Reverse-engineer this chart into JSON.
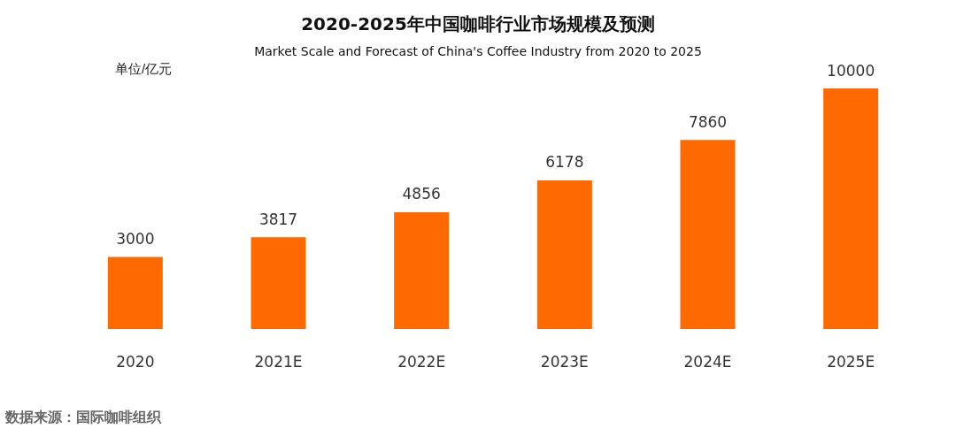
{
  "chart_data": {
    "type": "bar",
    "title": "2020-2025年中国咖啡行业市场规模及预测",
    "subtitle": "Market Scale and Forecast of China's Coffee Industry from 2020 to 2025",
    "ylabel": "单位/亿元",
    "categories": [
      "2020",
      "2021E",
      "2022E",
      "2023E",
      "2024E",
      "2025E"
    ],
    "values": [
      3000,
      3817,
      4856,
      6178,
      7860,
      10000
    ],
    "color": "#ff6a00",
    "data_labels": true,
    "annotations": [
      "数据来源：国际咖啡组织"
    ]
  }
}
